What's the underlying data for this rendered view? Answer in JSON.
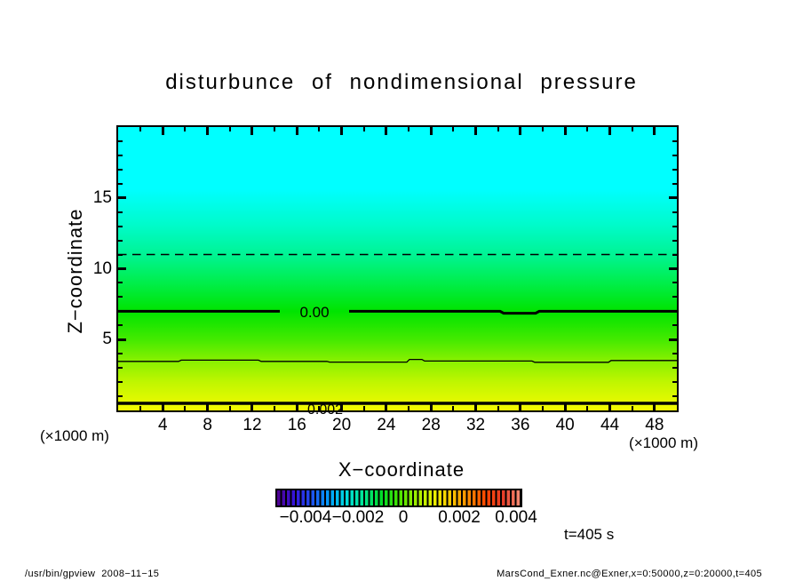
{
  "title": "disturbunce  of  nondimensional  pressure",
  "chart_data": {
    "type": "heatmap",
    "title": "disturbunce of nondimensional pressure",
    "xlabel": "X−coordinate",
    "ylabel": "Z−coordinate",
    "x_unit": "(×1000 m)",
    "y_unit": "(×1000 m)",
    "xlim": [
      0,
      50
    ],
    "ylim": [
      0,
      20
    ],
    "x_ticks_major": [
      4,
      8,
      12,
      16,
      20,
      24,
      28,
      32,
      36,
      40,
      44,
      48
    ],
    "x_tick_minor_step": 2,
    "y_ticks_major": [
      5,
      10,
      15
    ],
    "y_tick_minor_step": 1,
    "grid": false,
    "legend_position": "colorbar-bottom",
    "fill_description": "vertical tone fill, cyan at top (z=20) through green (z≈7) to yellow at bottom (z=0)",
    "gradient_stops": [
      {
        "color": "#00ffff",
        "pos": "0%"
      },
      {
        "color": "#00ffff",
        "pos": "22%"
      },
      {
        "color": "#00fbc8",
        "pos": "35%"
      },
      {
        "color": "#00f494",
        "pos": "45%"
      },
      {
        "color": "#00ee4a",
        "pos": "55%"
      },
      {
        "color": "#00e400",
        "pos": "65%"
      },
      {
        "color": "#44ea00",
        "pos": "75%"
      },
      {
        "color": "#84f000",
        "pos": "82%"
      },
      {
        "color": "#c0f600",
        "pos": "90%"
      },
      {
        "color": "#f4fa00",
        "pos": "100%"
      }
    ],
    "contours": [
      {
        "style": "dashed-thin",
        "z": 11,
        "label": ""
      },
      {
        "style": "solid-thick",
        "z": 7,
        "label": "0.00"
      },
      {
        "style": "solid-thin",
        "z": 3.5,
        "label": ""
      },
      {
        "style": "solid-thick",
        "z": 0.55,
        "label": "0.002"
      }
    ],
    "colorbar": {
      "labels": [
        "−0.004",
        "−0.002",
        "0",
        "0.002",
        "0.004"
      ],
      "colors": [
        "#500090",
        "#3414dc",
        "#1e50f0",
        "#00a0ff",
        "#00dcdc",
        "#00e890",
        "#00dc28",
        "#46e400",
        "#a0ee00",
        "#e8f000",
        "#ffc800",
        "#ff8c00",
        "#ff4600",
        "#e63c28",
        "#f59078"
      ]
    }
  },
  "annotations": {
    "time": "t=405 s"
  },
  "footer": {
    "left": "/usr/bin/gpview  2008−11−15",
    "right": "MarsCond_Exner.nc@Exner,x=0:50000,z=0:20000,t=405"
  }
}
